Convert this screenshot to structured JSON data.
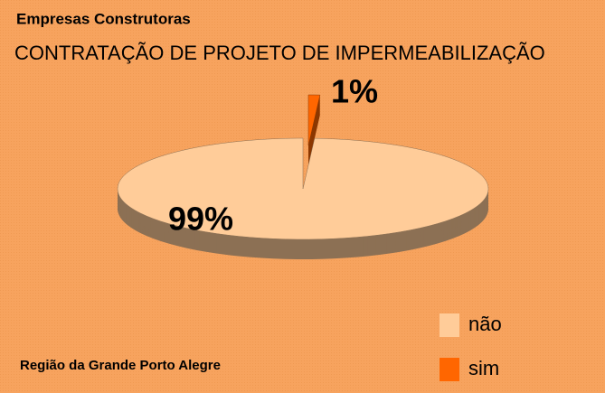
{
  "chart_data": {
    "type": "pie",
    "title": "Empresas Construtoras",
    "subtitle": "CONTRATAÇÃO DE PROJETO DE IMPERMEABILIZAÇÃO",
    "annotation": "Região da Grande Porto Alegre",
    "categories": [
      "não",
      "sim"
    ],
    "values": [
      99,
      1
    ],
    "value_labels": [
      "99%",
      "1%"
    ],
    "colors": [
      "#ffcc99",
      "#ff6600"
    ],
    "legend": "bottom-right"
  }
}
